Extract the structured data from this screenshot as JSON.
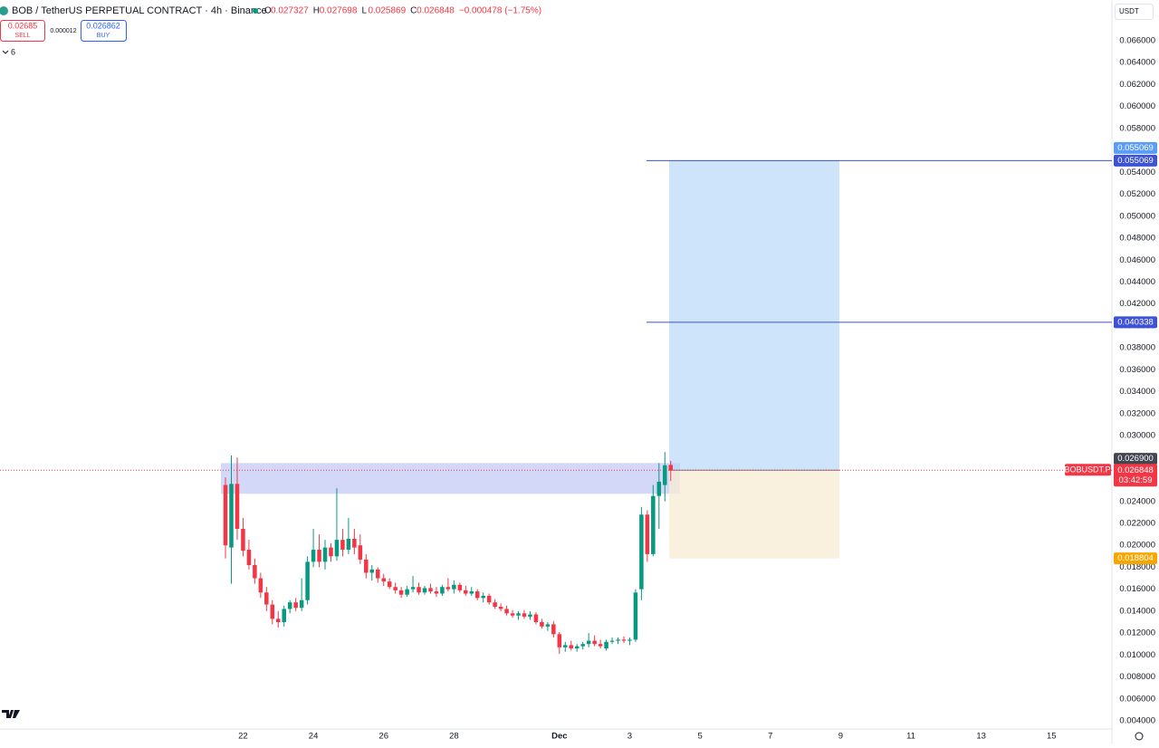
{
  "header": {
    "symbol": "BOB / TetherUS PERPETUAL CONTRACT · 4h · Binance",
    "o": "O",
    "h": "H",
    "l": "L",
    "c": "C",
    "change": "−0.000478 (−1.75%)",
    "sell_price": 0.02685,
    "sell": "SELL",
    "spread": 1.2e-05,
    "buy_price": 0.026862,
    "buy": "BUY",
    "indicators": "6",
    "currency": "USDT"
  },
  "chart_data": {
    "type": "candlestick",
    "open": [
      0.0255,
      0.0198,
      0.0256,
      0.0215,
      0.0196,
      0.0182,
      0.017,
      0.0157,
      0.0146,
      0.0133,
      0.013,
      0.0142,
      0.0148,
      0.0143,
      0.015,
      0.0185,
      0.0196,
      0.0185,
      0.0198,
      0.019,
      0.0205,
      0.0196,
      0.0206,
      0.02,
      0.0187,
      0.0175,
      0.0178,
      0.017,
      0.0167,
      0.0162,
      0.0159,
      0.0155,
      0.016,
      0.0162,
      0.0157,
      0.0161,
      0.0158,
      0.0156,
      0.0162,
      0.016,
      0.0164,
      0.0159,
      0.0156,
      0.0158,
      0.0152,
      0.0154,
      0.0148,
      0.0144,
      0.0142,
      0.0138,
      0.0136,
      0.0138,
      0.0135,
      0.0137,
      0.013,
      0.0126,
      0.0128,
      0.0119,
      0.0107,
      0.0109,
      0.0106,
      0.0108,
      0.011,
      0.0113,
      0.011,
      0.0106,
      0.0112,
      0.0113,
      0.0114,
      0.0113,
      0.0114,
      0.016,
      0.0228,
      0.0192,
      0.0245,
      0.0255,
      0.027327
    ],
    "high": [
      0.0262,
      0.0282,
      0.028,
      0.0225,
      0.0205,
      0.0188,
      0.0175,
      0.0162,
      0.015,
      0.014,
      0.0145,
      0.015,
      0.0152,
      0.017,
      0.019,
      0.0215,
      0.021,
      0.0205,
      0.0202,
      0.0252,
      0.0215,
      0.0225,
      0.0215,
      0.021,
      0.0192,
      0.0182,
      0.018,
      0.0174,
      0.017,
      0.0166,
      0.0162,
      0.0163,
      0.0172,
      0.0166,
      0.0163,
      0.0165,
      0.0162,
      0.0164,
      0.017,
      0.0168,
      0.0166,
      0.0163,
      0.0162,
      0.016,
      0.0157,
      0.0156,
      0.0151,
      0.0147,
      0.0145,
      0.0141,
      0.014,
      0.0141,
      0.014,
      0.0139,
      0.0133,
      0.013,
      0.0131,
      0.0121,
      0.0112,
      0.0113,
      0.011,
      0.0112,
      0.012,
      0.0118,
      0.0114,
      0.0114,
      0.0116,
      0.0116,
      0.0117,
      0.0116,
      0.016,
      0.0235,
      0.0232,
      0.0255,
      0.0275,
      0.0285,
      0.027698
    ],
    "low": [
      0.0188,
      0.0165,
      0.0205,
      0.019,
      0.0178,
      0.0165,
      0.0152,
      0.014,
      0.0128,
      0.0125,
      0.0126,
      0.0138,
      0.014,
      0.014,
      0.0146,
      0.018,
      0.018,
      0.0178,
      0.0185,
      0.0186,
      0.019,
      0.0192,
      0.0192,
      0.0183,
      0.017,
      0.0168,
      0.0166,
      0.0163,
      0.016,
      0.0156,
      0.0152,
      0.0153,
      0.0157,
      0.0155,
      0.0155,
      0.0156,
      0.0153,
      0.0154,
      0.0158,
      0.0156,
      0.0157,
      0.0154,
      0.0154,
      0.015,
      0.0148,
      0.0146,
      0.0142,
      0.014,
      0.0136,
      0.0134,
      0.0132,
      0.0133,
      0.0132,
      0.0128,
      0.0124,
      0.0122,
      0.0116,
      0.0101,
      0.0103,
      0.0104,
      0.0103,
      0.0105,
      0.0107,
      0.0108,
      0.0106,
      0.0104,
      0.011,
      0.011,
      0.0111,
      0.0109,
      0.0112,
      0.015,
      0.0185,
      0.019,
      0.0215,
      0.024,
      0.025869
    ],
    "close": [
      0.02,
      0.0256,
      0.0215,
      0.0195,
      0.0182,
      0.017,
      0.0157,
      0.0146,
      0.0133,
      0.013,
      0.0142,
      0.0148,
      0.0143,
      0.015,
      0.0185,
      0.0196,
      0.0185,
      0.0198,
      0.019,
      0.0205,
      0.0196,
      0.0206,
      0.0198,
      0.0187,
      0.0175,
      0.0178,
      0.017,
      0.0167,
      0.0162,
      0.0159,
      0.0155,
      0.016,
      0.0162,
      0.0157,
      0.0161,
      0.0158,
      0.0156,
      0.0162,
      0.016,
      0.0164,
      0.0159,
      0.0156,
      0.0158,
      0.0152,
      0.0154,
      0.0148,
      0.0144,
      0.0142,
      0.0138,
      0.0136,
      0.0138,
      0.0135,
      0.0137,
      0.013,
      0.0126,
      0.0128,
      0.0119,
      0.0107,
      0.0109,
      0.0106,
      0.0108,
      0.011,
      0.0113,
      0.011,
      0.0108,
      0.0112,
      0.0113,
      0.0114,
      0.0113,
      0.0114,
      0.0157,
      0.0228,
      0.0192,
      0.0245,
      0.0258,
      0.0273,
      0.026848
    ],
    "up_color": "#089981",
    "down_color": "#f23645",
    "xlim": [
      -38.49,
      151.31
    ],
    "xticks": [
      {
        "value": 3,
        "label": "22"
      },
      {
        "value": 15,
        "label": "24"
      },
      {
        "value": 27,
        "label": "26"
      },
      {
        "value": 39,
        "label": "28"
      },
      {
        "value": 57,
        "label": "Dec"
      },
      {
        "value": 69,
        "label": "3"
      },
      {
        "value": 81,
        "label": "5"
      },
      {
        "value": 93,
        "label": "7"
      },
      {
        "value": 105,
        "label": "9"
      },
      {
        "value": 117,
        "label": "11"
      },
      {
        "value": 129,
        "label": "13"
      },
      {
        "value": 141,
        "label": "15"
      }
    ],
    "ylim": [
      0.003257,
      0.069715
    ],
    "yticks": [
      {
        "value": 0.004,
        "label": "0.004000"
      },
      {
        "value": 0.006,
        "label": "0.006000"
      },
      {
        "value": 0.008,
        "label": "0.008000"
      },
      {
        "value": 0.01,
        "label": "0.010000"
      },
      {
        "value": 0.012,
        "label": "0.012000"
      },
      {
        "value": 0.014,
        "label": "0.014000"
      },
      {
        "value": 0.016,
        "label": "0.016000"
      },
      {
        "value": 0.018,
        "label": "0.018000"
      },
      {
        "value": 0.02,
        "label": "0.020000"
      },
      {
        "value": 0.022,
        "label": "0.022000"
      },
      {
        "value": 0.024,
        "label": "0.024000"
      },
      {
        "value": 0.026,
        "label": "0.026000"
      },
      {
        "value": 0.028,
        "label": "0.028000"
      },
      {
        "value": 0.03,
        "label": "0.030000"
      },
      {
        "value": 0.032,
        "label": "0.032000"
      },
      {
        "value": 0.034,
        "label": "0.034000"
      },
      {
        "value": 0.036,
        "label": "0.036000"
      },
      {
        "value": 0.038,
        "label": "0.038000"
      },
      {
        "value": 0.04,
        "label": "0.040000"
      },
      {
        "value": 0.042,
        "label": "0.042000"
      },
      {
        "value": 0.044,
        "label": "0.044000"
      },
      {
        "value": 0.046,
        "label": "0.046000"
      },
      {
        "value": 0.048,
        "label": "0.048000"
      },
      {
        "value": 0.05,
        "label": "0.050000"
      },
      {
        "value": 0.052,
        "label": "0.052000"
      },
      {
        "value": 0.054,
        "label": "0.054000"
      },
      {
        "value": 0.056,
        "label": "0.056000"
      },
      {
        "value": 0.058,
        "label": "0.058000"
      },
      {
        "value": 0.06,
        "label": "0.060000"
      },
      {
        "value": 0.062,
        "label": "0.062000"
      },
      {
        "value": 0.064,
        "label": "0.064000"
      },
      {
        "value": 0.066,
        "label": "0.066000"
      }
    ],
    "grid": false,
    "zone": {
      "top": 0.0275,
      "bottom": 0.0247,
      "color": "#9fa8f0"
    },
    "position": {
      "entry": 0.026848,
      "target": 0.055069,
      "stop": 0.018804
    },
    "lines": [
      {
        "price": 0.055069,
        "color": "#3d52d5"
      },
      {
        "price": 0.040338,
        "color": "#3d52d5"
      }
    ],
    "price_tags": [
      {
        "price": 0.055069,
        "color": "#5b9cf6",
        "offset": -14
      },
      {
        "price": 0.055069,
        "color": "#3d52d5",
        "offset": 0
      },
      {
        "price": 0.040338,
        "color": "#3d52d5",
        "offset": 0
      },
      {
        "price": {
          "value": 0.0269,
          "label": "0.026900"
        },
        "color": "#434651",
        "offset": -12
      },
      {
        "price": 0.018804,
        "color": "#f7a600",
        "offset": 0
      }
    ],
    "symbol_tag": "BOBUSDT.P",
    "countdown": "03:42:59"
  }
}
